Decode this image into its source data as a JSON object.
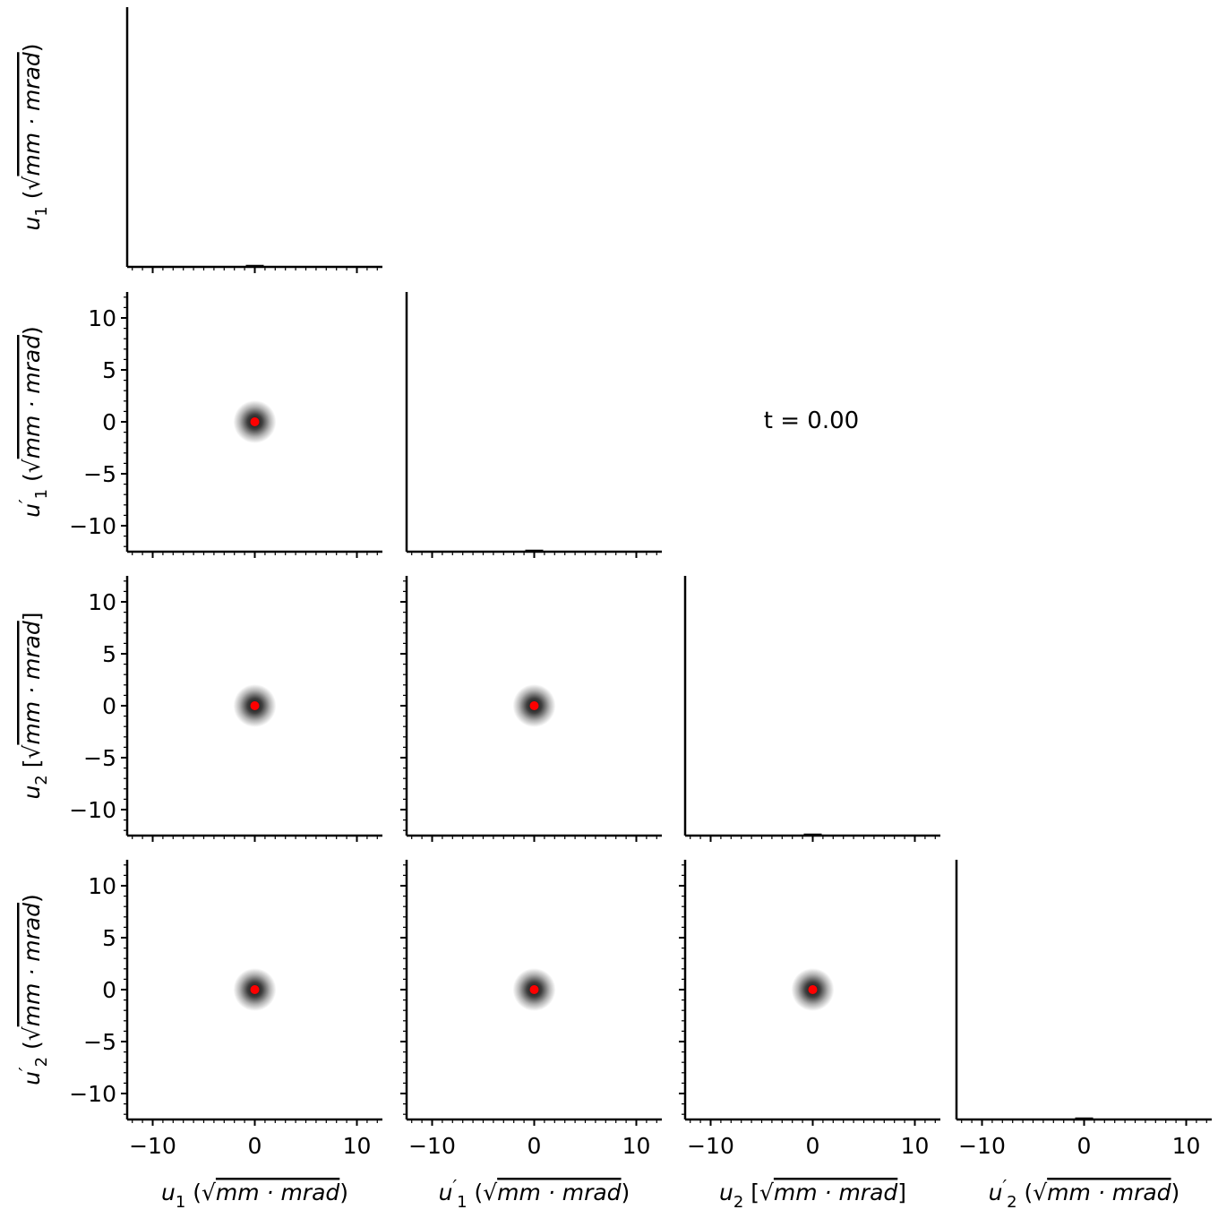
{
  "chart_data": {
    "type": "corner-plot",
    "time_label": "t = 0.00",
    "axis_range": [
      -12.5,
      12.5
    ],
    "major_ticks": [
      -10,
      0,
      10
    ],
    "y_major_ticks": [
      10,
      5,
      0,
      -5,
      -10
    ],
    "minor_tick_step": 1,
    "variables": [
      {
        "id": "u1",
        "symbol": "u",
        "sub": "1",
        "prime": false,
        "open": "(",
        "close": ")",
        "unit": "mm · mrad"
      },
      {
        "id": "u1p",
        "symbol": "u",
        "sub": "1",
        "prime": true,
        "open": "(",
        "close": ")",
        "unit": "mm · mrad"
      },
      {
        "id": "u2",
        "symbol": "u",
        "sub": "2",
        "prime": false,
        "open": "[",
        "close": "]",
        "unit": "mm · mrad"
      },
      {
        "id": "u2p",
        "symbol": "u",
        "sub": "2",
        "prime": true,
        "open": "(",
        "close": ")",
        "unit": "mm · mrad"
      }
    ],
    "centroid": {
      "x": 0,
      "y": 0,
      "color": "#ff0000"
    },
    "beam_spread": 0.35,
    "density_color": "#000000",
    "tick_label_text": {
      "-10": "−10",
      "-5": "−5",
      "0": "0",
      "5": "5",
      "10": "10"
    },
    "sqrt_symbol": "√"
  }
}
